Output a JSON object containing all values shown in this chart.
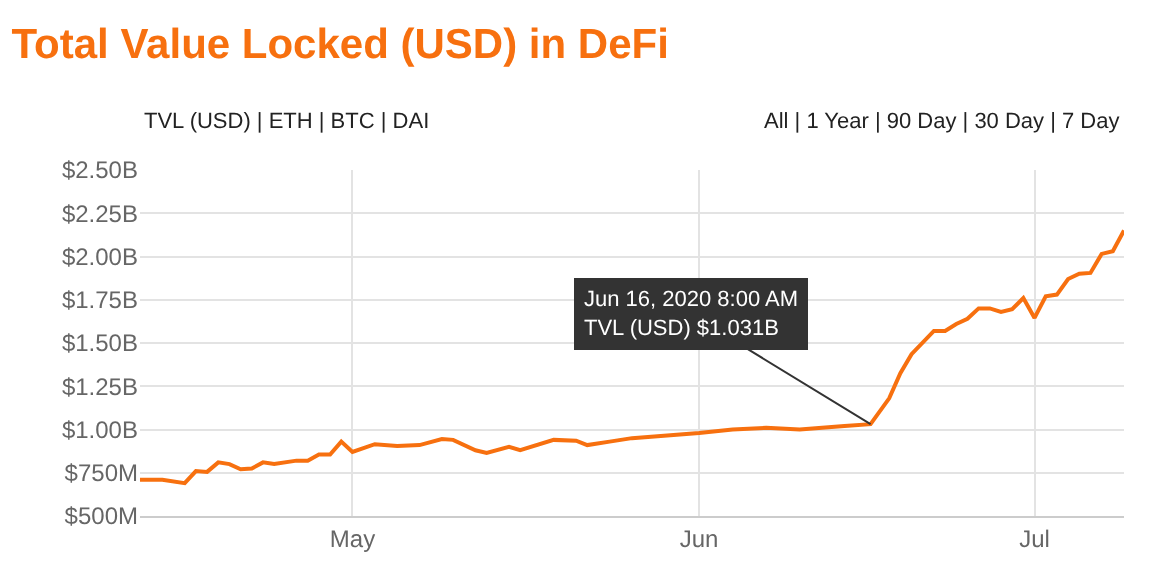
{
  "chart_data": {
    "type": "line",
    "title": "Total Value Locked (USD) in DeFi",
    "annotations": [
      "TVL (USD) | ETH | BTC | DAI",
      "All | 1 Year | 90 Day | 30 Day | 7 Day",
      {
        "text": "Jun 16, 2020 8:00 AM\nTVL (USD) $1.031B",
        "x": "2020-06-16T08:00",
        "y": 1031000000
      }
    ],
    "x": [
      "2020-04-12",
      "2020-04-14",
      "2020-04-16",
      "2020-04-17",
      "2020-04-18",
      "2020-04-19",
      "2020-04-20",
      "2020-04-21",
      "2020-04-22",
      "2020-04-23",
      "2020-04-24",
      "2020-04-26",
      "2020-04-27",
      "2020-04-28",
      "2020-04-29",
      "2020-04-30",
      "2020-05-01",
      "2020-05-03",
      "2020-05-05",
      "2020-05-07",
      "2020-05-09",
      "2020-05-10",
      "2020-05-12",
      "2020-05-13",
      "2020-05-15",
      "2020-05-16",
      "2020-05-19",
      "2020-05-21",
      "2020-05-22",
      "2020-05-24",
      "2020-05-26",
      "2020-05-28",
      "2020-05-30",
      "2020-06-01",
      "2020-06-04",
      "2020-06-07",
      "2020-06-10",
      "2020-06-12",
      "2020-06-14",
      "2020-06-16T08:00",
      "2020-06-18",
      "2020-06-19",
      "2020-06-20",
      "2020-06-22",
      "2020-06-23",
      "2020-06-24",
      "2020-06-25",
      "2020-06-26",
      "2020-06-27",
      "2020-06-28",
      "2020-06-29",
      "2020-06-30",
      "2020-07-01",
      "2020-07-02",
      "2020-07-03",
      "2020-07-04",
      "2020-07-05",
      "2020-07-06",
      "2020-07-07",
      "2020-07-08",
      "2020-07-09"
    ],
    "series": [
      {
        "color": "#f7700f",
        "values": [
          710000000,
          710000000,
          690000000,
          760000000,
          755000000,
          810000000,
          800000000,
          770000000,
          775000000,
          810000000,
          800000000,
          820000000,
          820000000,
          855000000,
          855000000,
          930000000,
          870000000,
          915000000,
          905000000,
          910000000,
          945000000,
          940000000,
          880000000,
          865000000,
          900000000,
          880000000,
          940000000,
          935000000,
          910000000,
          930000000,
          950000000,
          960000000,
          970000000,
          980000000,
          1000000000,
          1010000000,
          1000000000,
          1010000000,
          1020000000,
          1031000000,
          1180000000,
          1325000000,
          1435000000,
          1570000000,
          1570000000,
          1610000000,
          1640000000,
          1700000000,
          1700000000,
          1680000000,
          1695000000,
          1760000000,
          1645000000,
          1770000000,
          1780000000,
          1870000000,
          1900000000,
          1905000000,
          2015000000,
          2030000000,
          2150000000
        ]
      }
    ],
    "xlim": [
      "2020-04-12",
      "2020-07-09"
    ],
    "xticks": [
      {
        "value": "2020-05-01",
        "label": "May"
      },
      {
        "value": "2020-06-01",
        "label": "Jun"
      },
      {
        "value": "2020-07-01",
        "label": "Jul"
      }
    ],
    "ylim": [
      500000000,
      2500000000
    ],
    "yticks": [
      {
        "value": 500000000,
        "label": "$500M"
      },
      {
        "value": 750000000,
        "label": "$750M"
      },
      {
        "value": 1000000000,
        "label": "$1.00B"
      },
      {
        "value": 1250000000,
        "label": "$1.25B"
      },
      {
        "value": 1500000000,
        "label": "$1.50B"
      },
      {
        "value": 1750000000,
        "label": "$1.75B"
      },
      {
        "value": 2000000000,
        "label": "$2.00B"
      },
      {
        "value": 2250000000,
        "label": "$2.25B"
      },
      {
        "value": 2500000000,
        "label": "$2.50B"
      }
    ],
    "grid": true,
    "legend": false,
    "marker": "none",
    "line_style": "solid"
  }
}
